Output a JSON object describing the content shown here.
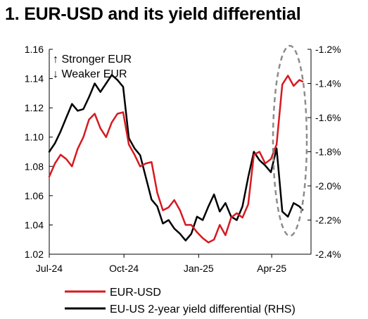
{
  "title": "1. EUR-USD and its yield differential",
  "colors": {
    "eurusd": "#d71920",
    "diff": "#000000",
    "ellipse": "#8c8c8c"
  },
  "chart_data": {
    "type": "line",
    "title": "1. EUR-USD and its yield differential",
    "x_ticks": [
      "Jul-24",
      "Oct-24",
      "Jan-25",
      "Apr-25"
    ],
    "x_tick_dates": [
      "2024-07-01",
      "2024-10-01",
      "2025-01-01",
      "2025-04-01"
    ],
    "xlim": [
      "2024-07-01",
      "2025-05-09"
    ],
    "ylim_left": [
      1.02,
      1.16
    ],
    "ylim_right": [
      -2.4,
      -1.2
    ],
    "left_ticks": [
      "1.16",
      "1.14",
      "1.12",
      "1.10",
      "1.08",
      "1.06",
      "1.04",
      "1.02"
    ],
    "right_ticks": [
      "-1.2%",
      "-1.4%",
      "-1.6%",
      "-1.8%",
      "-2.0%",
      "-2.2%",
      "-2.4%"
    ],
    "annotations": [
      "↑ Stronger EUR",
      "↓ Weaker EUR"
    ],
    "grid": false,
    "legend_position": "bottom-left",
    "series": [
      {
        "name": "EUR-USD",
        "axis": "left",
        "x": [
          "2024-07-01",
          "2024-07-08",
          "2024-07-15",
          "2024-07-22",
          "2024-07-29",
          "2024-08-05",
          "2024-08-12",
          "2024-08-19",
          "2024-08-26",
          "2024-09-02",
          "2024-09-09",
          "2024-09-16",
          "2024-09-23",
          "2024-09-30",
          "2024-10-07",
          "2024-10-14",
          "2024-10-21",
          "2024-10-28",
          "2024-11-04",
          "2024-11-11",
          "2024-11-18",
          "2024-11-25",
          "2024-12-02",
          "2024-12-09",
          "2024-12-16",
          "2024-12-23",
          "2024-12-30",
          "2025-01-06",
          "2025-01-13",
          "2025-01-20",
          "2025-01-27",
          "2025-02-03",
          "2025-02-10",
          "2025-02-17",
          "2025-02-24",
          "2025-03-03",
          "2025-03-10",
          "2025-03-17",
          "2025-03-24",
          "2025-03-31",
          "2025-04-07",
          "2025-04-14",
          "2025-04-21",
          "2025-04-28",
          "2025-05-05",
          "2025-05-09"
        ],
        "y": [
          1.073,
          1.082,
          1.088,
          1.085,
          1.08,
          1.092,
          1.1,
          1.112,
          1.116,
          1.106,
          1.1,
          1.11,
          1.116,
          1.117,
          1.095,
          1.088,
          1.08,
          1.082,
          1.083,
          1.062,
          1.05,
          1.052,
          1.057,
          1.05,
          1.04,
          1.04,
          1.035,
          1.031,
          1.028,
          1.03,
          1.04,
          1.033,
          1.045,
          1.048,
          1.045,
          1.054,
          1.088,
          1.09,
          1.082,
          1.085,
          1.095,
          1.136,
          1.142,
          1.135,
          1.139,
          1.138
        ]
      },
      {
        "name": "EU-US 2-year yield differential (RHS)",
        "axis": "right",
        "x": [
          "2024-07-01",
          "2024-07-08",
          "2024-07-15",
          "2024-07-22",
          "2024-07-29",
          "2024-08-05",
          "2024-08-12",
          "2024-08-19",
          "2024-08-26",
          "2024-09-02",
          "2024-09-09",
          "2024-09-16",
          "2024-09-23",
          "2024-09-30",
          "2024-10-07",
          "2024-10-14",
          "2024-10-21",
          "2024-10-28",
          "2024-11-04",
          "2024-11-11",
          "2024-11-18",
          "2024-11-25",
          "2024-12-02",
          "2024-12-09",
          "2024-12-16",
          "2024-12-23",
          "2024-12-30",
          "2025-01-06",
          "2025-01-13",
          "2025-01-20",
          "2025-01-27",
          "2025-02-03",
          "2025-02-10",
          "2025-02-17",
          "2025-02-24",
          "2025-03-03",
          "2025-03-10",
          "2025-03-17",
          "2025-03-24",
          "2025-03-31",
          "2025-04-07",
          "2025-04-14",
          "2025-04-21",
          "2025-04-28",
          "2025-05-05",
          "2025-05-09"
        ],
        "y": [
          -1.8,
          -1.75,
          -1.68,
          -1.6,
          -1.52,
          -1.56,
          -1.55,
          -1.48,
          -1.4,
          -1.45,
          -1.4,
          -1.35,
          -1.38,
          -1.42,
          -1.72,
          -1.78,
          -1.82,
          -1.95,
          -2.08,
          -2.12,
          -2.22,
          -2.2,
          -2.25,
          -2.28,
          -2.32,
          -2.28,
          -2.18,
          -2.2,
          -2.12,
          -2.05,
          -2.15,
          -2.1,
          -2.18,
          -2.2,
          -2.12,
          -1.95,
          -1.8,
          -1.85,
          -1.88,
          -1.92,
          -1.78,
          -2.15,
          -2.18,
          -2.1,
          -2.12,
          -2.14
        ]
      }
    ]
  },
  "legend": {
    "eurusd_label": "EUR-USD",
    "diff_label": "EU-US 2-year yield differential (RHS)"
  }
}
